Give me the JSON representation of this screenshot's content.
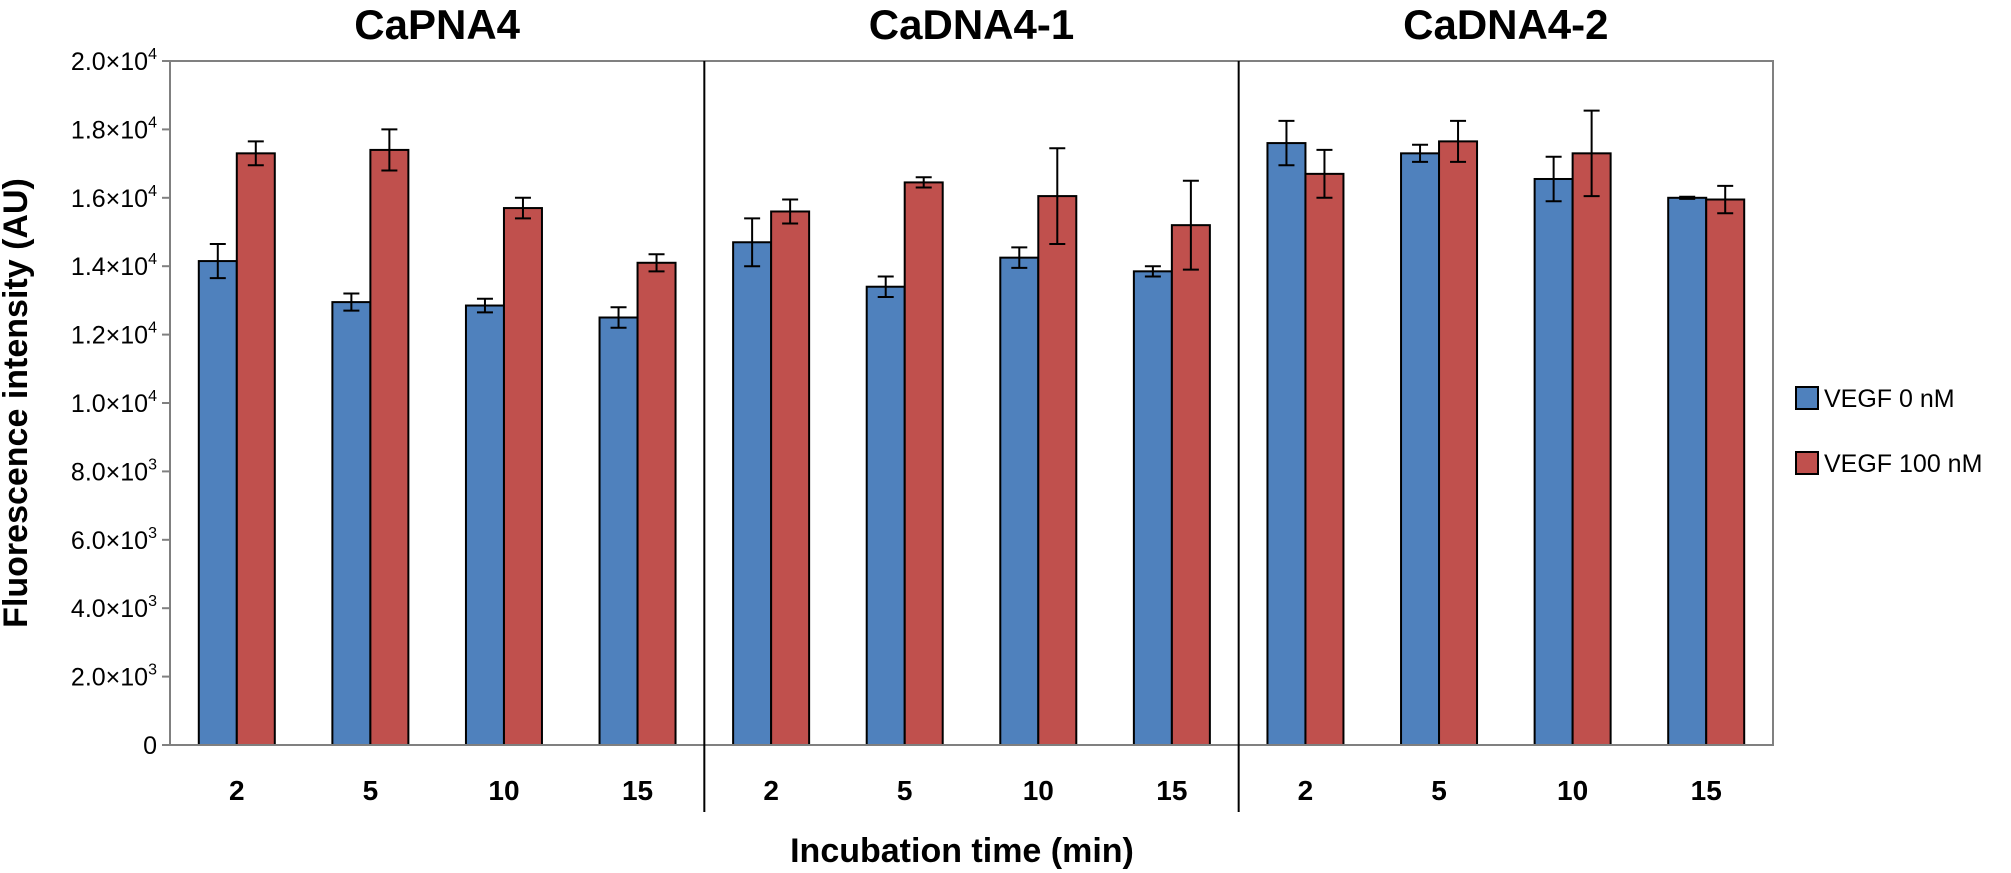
{
  "chart_data": {
    "type": "bar",
    "xlabel": "Incubation time (min)",
    "ylabel": "Fluorescence intensity (AU)",
    "ylim": [
      0,
      20000
    ],
    "grid": false,
    "legend_position": "right",
    "yticks": [
      {
        "value": 0,
        "label": "0",
        "sup": ""
      },
      {
        "value": 2000,
        "label": "2.0×10",
        "sup": "3"
      },
      {
        "value": 4000,
        "label": "4.0×10",
        "sup": "3"
      },
      {
        "value": 6000,
        "label": "6.0×10",
        "sup": "3"
      },
      {
        "value": 8000,
        "label": "8.0×10",
        "sup": "3"
      },
      {
        "value": 10000,
        "label": "1.0×10",
        "sup": "4"
      },
      {
        "value": 12000,
        "label": "1.2×10",
        "sup": "4"
      },
      {
        "value": 14000,
        "label": "1.4×10",
        "sup": "4"
      },
      {
        "value": 16000,
        "label": "1.6×10",
        "sup": "4"
      },
      {
        "value": 18000,
        "label": "1.8×10",
        "sup": "4"
      },
      {
        "value": 20000,
        "label": "2.0×10",
        "sup": "4"
      }
    ],
    "categories": [
      "2",
      "5",
      "10",
      "15"
    ],
    "groups": [
      {
        "title": "CaPNA4",
        "series": [
          {
            "name": "VEGF 0 nM",
            "values": [
              14150,
              12950,
              12850,
              12500
            ],
            "errors": [
              500,
              250,
              200,
              300
            ]
          },
          {
            "name": "VEGF 100 nM",
            "values": [
              17300,
              17400,
              15700,
              14100
            ],
            "errors": [
              350,
              600,
              300,
              250
            ]
          }
        ]
      },
      {
        "title": "CaDNA4-1",
        "series": [
          {
            "name": "VEGF 0 nM",
            "values": [
              14700,
              13400,
              14250,
              13850
            ],
            "errors": [
              700,
              300,
              300,
              150
            ]
          },
          {
            "name": "VEGF 100 nM",
            "values": [
              15600,
              16450,
              16050,
              15200
            ],
            "errors": [
              350,
              150,
              1400,
              1300
            ]
          }
        ]
      },
      {
        "title": "CaDNA4-2",
        "series": [
          {
            "name": "VEGF 0 nM",
            "values": [
              17600,
              17300,
              16550,
              16000
            ],
            "errors": [
              650,
              250,
              650,
              30
            ]
          },
          {
            "name": "VEGF 100 nM",
            "values": [
              16700,
              17650,
              17300,
              15950
            ],
            "errors": [
              700,
              600,
              1250,
              400
            ]
          }
        ]
      }
    ],
    "legend": [
      {
        "name": "VEGF 0 nM",
        "color": "#4f81bd"
      },
      {
        "name": "VEGF 100 nM",
        "color": "#c0504d"
      }
    ],
    "colors": {
      "series0": "#4f81bd",
      "series1": "#c0504d",
      "frame": "#808080",
      "divider": "#000000"
    }
  }
}
